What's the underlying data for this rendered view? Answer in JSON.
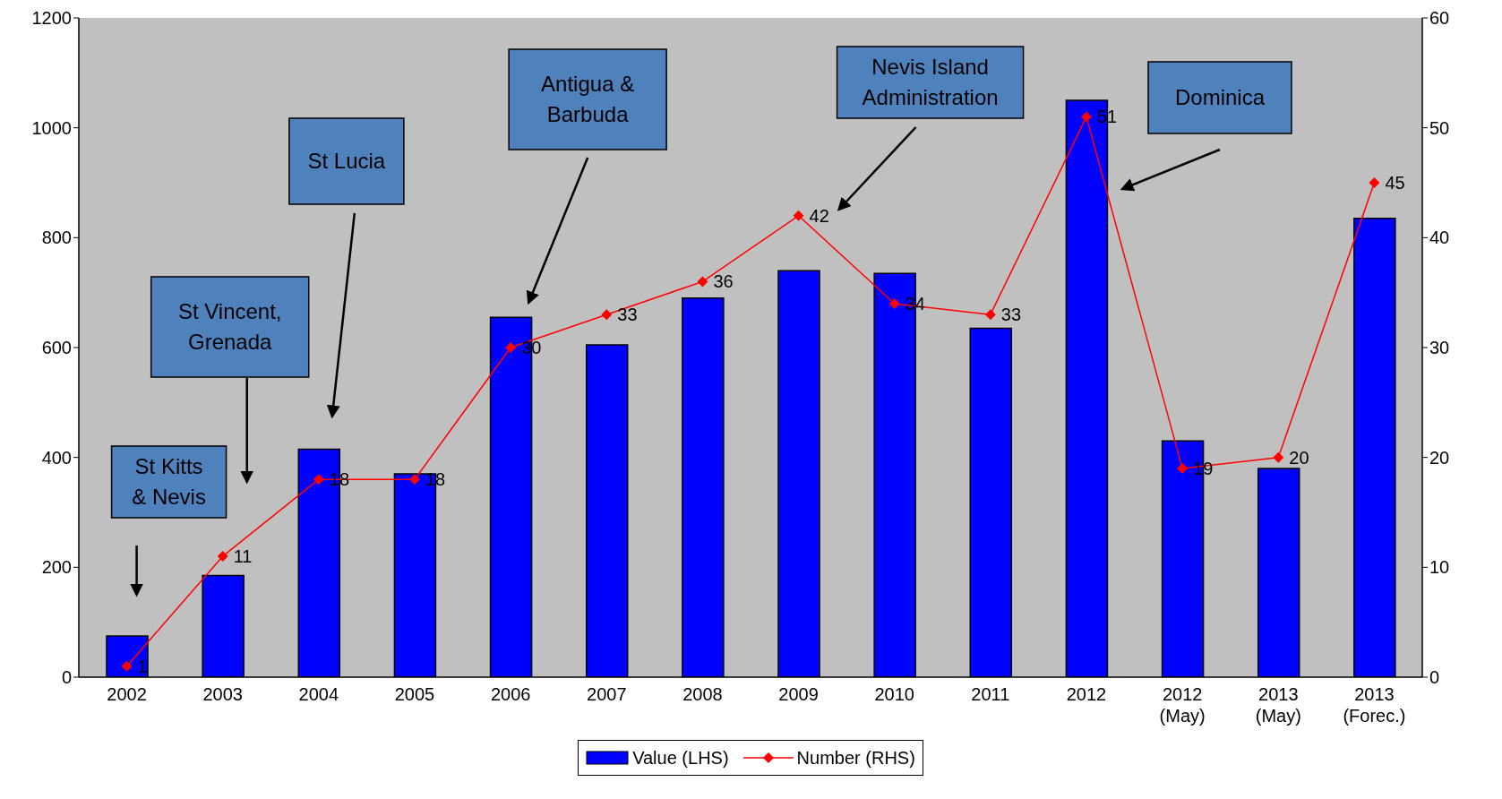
{
  "chart_data": {
    "type": "bar",
    "categories": [
      "2002",
      "2003",
      "2004",
      "2005",
      "2006",
      "2007",
      "2008",
      "2009",
      "2010",
      "2011",
      "2012",
      "2012 (May)",
      "2013 (May)",
      "2013 (Forec.)"
    ],
    "series": [
      {
        "name": "Value (LHS)",
        "color": "#0000ff",
        "values": [
          75,
          185,
          415,
          370,
          655,
          605,
          690,
          740,
          735,
          635,
          1050,
          430,
          380,
          835
        ]
      },
      {
        "name": "Number (RHS)",
        "type": "line",
        "axis": "y2",
        "color": "#ff0000",
        "values": [
          1,
          11,
          18,
          18,
          30,
          33,
          36,
          42,
          34,
          33,
          51,
          19,
          20,
          45
        ],
        "value_labels": [
          "1",
          "11",
          "18",
          "18",
          "30",
          "33",
          "36",
          "42",
          "34",
          "33",
          "51",
          "19",
          "20",
          "45"
        ]
      }
    ],
    "ylim": [
      0,
      1200
    ],
    "yticks": [
      0,
      200,
      400,
      600,
      800,
      1000,
      1200
    ],
    "y2lim": [
      0,
      60
    ],
    "y2ticks": [
      0,
      10,
      20,
      30,
      40,
      50,
      60
    ],
    "grid": false,
    "legend": "bottom",
    "marker": "diamond",
    "line_style": "solid",
    "annotations": [
      "St Kitts & Nevis",
      "St Vincent, Grenada",
      "St Lucia",
      "Antigua & Barbuda",
      "Nevis Island Administration",
      "Dominica"
    ]
  }
}
